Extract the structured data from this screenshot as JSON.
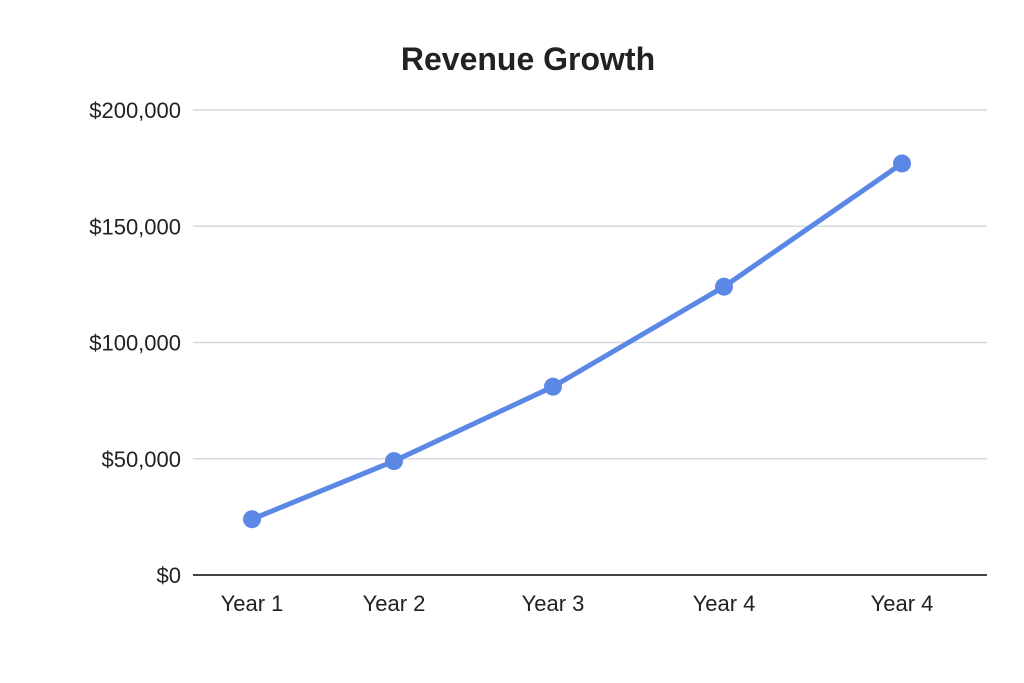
{
  "chart_data": {
    "type": "line",
    "title": "Revenue Growth",
    "xlabel": "",
    "ylabel": "",
    "categories": [
      "Year 1",
      "Year 2",
      "Year 3",
      "Year 4",
      "Year 4"
    ],
    "series": [
      {
        "name": "Revenue",
        "values": [
          24000,
          49000,
          81000,
          124000,
          177000
        ],
        "color": "#5b87e5"
      }
    ],
    "ylim": [
      0,
      200000
    ],
    "yticks": [
      0,
      50000,
      100000,
      150000,
      200000
    ],
    "ytick_labels": [
      "$0",
      "$50,000",
      "$100,000",
      "$150,000",
      "$200,000"
    ],
    "grid": true,
    "legend": "none"
  }
}
